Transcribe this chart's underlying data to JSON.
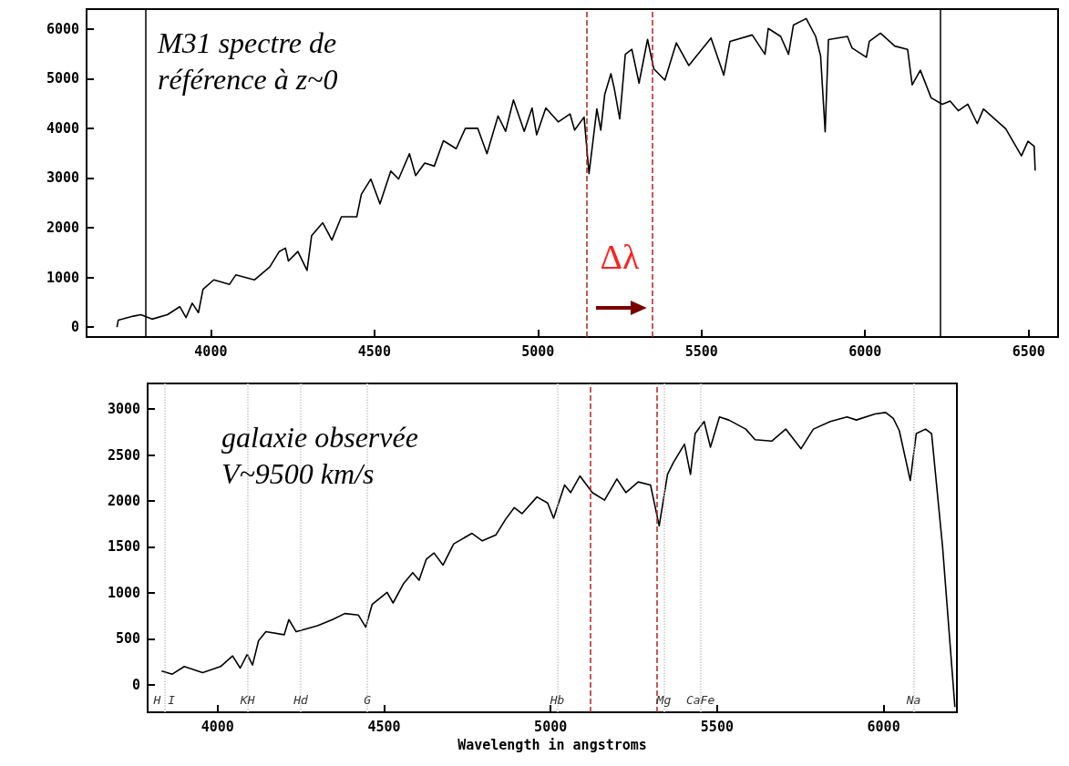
{
  "chart_data": [
    {
      "type": "line",
      "title": "M31 spectre de\nréférence à z~0",
      "marker": "none",
      "grid": false,
      "xlim": [
        3620,
        6590
      ],
      "xticks": [
        4000,
        4500,
        5000,
        5500,
        6000,
        6500
      ],
      "ylim": [
        -200,
        6400
      ],
      "yticks": [
        0,
        1000,
        2000,
        3000,
        4000,
        5000,
        6000
      ],
      "series": [
        {
          "color": "#000000",
          "x": [
            3713,
            3717,
            3763,
            3786,
            3820,
            3867,
            3905,
            3924,
            3943,
            3962,
            3976,
            4009,
            4057,
            4076,
            4133,
            4180,
            4209,
            4228,
            4237,
            4266,
            4294,
            4308,
            4342,
            4370,
            4399,
            4446,
            4460,
            4489,
            4517,
            4550,
            4574,
            4607,
            4626,
            4654,
            4683,
            4711,
            4750,
            4778,
            4816,
            4844,
            4878,
            4901,
            4925,
            4958,
            4982,
            4996,
            5024,
            5062,
            5098,
            5112,
            5141,
            5156,
            5165,
            5180,
            5192,
            5204,
            5223,
            5233,
            5250,
            5267,
            5287,
            5309,
            5335,
            5354,
            5388,
            5423,
            5461,
            5529,
            5568,
            5587,
            5655,
            5694,
            5704,
            5742,
            5766,
            5781,
            5820,
            5849,
            5864,
            5878,
            5888,
            5946,
            5960,
            6004,
            6013,
            6047,
            6091,
            6130,
            6144,
            6169,
            6202,
            6236,
            6260,
            6285,
            6314,
            6343,
            6362,
            6430,
            6478,
            6498,
            6517,
            6520
          ],
          "values": [
            0,
            140,
            220,
            250,
            160,
            250,
            410,
            190,
            480,
            290,
            760,
            950,
            860,
            1050,
            950,
            1210,
            1520,
            1590,
            1330,
            1520,
            1140,
            1840,
            2100,
            1750,
            2220,
            2220,
            2670,
            2980,
            2480,
            3140,
            2980,
            3490,
            3050,
            3300,
            3240,
            3750,
            3590,
            4000,
            4000,
            3490,
            4250,
            3940,
            4570,
            3940,
            4410,
            3870,
            4410,
            4130,
            4290,
            3965,
            4225,
            3090,
            3575,
            4390,
            3965,
            4680,
            5100,
            4810,
            4190,
            5490,
            5590,
            4910,
            5790,
            5200,
            4970,
            5720,
            5265,
            5820,
            5070,
            5750,
            5880,
            5490,
            6010,
            5850,
            5490,
            6080,
            6210,
            5850,
            5460,
            3930,
            5785,
            5850,
            5620,
            5430,
            5750,
            5915,
            5655,
            5590,
            4875,
            5170,
            4615,
            4485,
            4550,
            4355,
            4485,
            4095,
            4390,
            3990,
            3445,
            3740,
            3640,
            3150
          ]
        }
      ],
      "ref_lines": [
        {
          "axis": "x",
          "value": 3800,
          "color": "#000000",
          "line_style": "solid"
        },
        {
          "axis": "x",
          "value": 6230,
          "color": "#000000",
          "line_style": "solid"
        },
        {
          "axis": "x",
          "value": 5150,
          "color": "#b22222",
          "line_style": "dashed"
        },
        {
          "axis": "x",
          "value": 5350,
          "color": "#b22222",
          "line_style": "dashed"
        }
      ],
      "annotations": [
        "Δλ"
      ]
    },
    {
      "type": "line",
      "title": "galaxie observée\nV~9500 km/s",
      "xlabel": "Wavelength in angstroms",
      "marker": "none",
      "grid": false,
      "xlim": [
        3790,
        6220
      ],
      "xticks": [
        4000,
        4500,
        5000,
        5500,
        6000
      ],
      "ylim": [
        -300,
        3280
      ],
      "yticks": [
        0,
        500,
        1000,
        1500,
        2000,
        2500,
        3000
      ],
      "series": [
        {
          "color": "#000000",
          "x": [
            3832,
            3864,
            3900,
            3955,
            4009,
            4045,
            4068,
            4089,
            4105,
            4123,
            4145,
            4200,
            4214,
            4236,
            4300,
            4345,
            4382,
            4423,
            4445,
            4464,
            4509,
            4527,
            4559,
            4586,
            4605,
            4627,
            4650,
            4677,
            4709,
            4764,
            4795,
            4836,
            4864,
            4891,
            4914,
            4959,
            4991,
            5009,
            5042,
            5060,
            5088,
            5125,
            5162,
            5199,
            5226,
            5263,
            5300,
            5326,
            5351,
            5369,
            5402,
            5420,
            5434,
            5461,
            5480,
            5507,
            5535,
            5586,
            5614,
            5664,
            5706,
            5752,
            5789,
            5840,
            5890,
            5918,
            5974,
            6006,
            6029,
            6047,
            6080,
            6098,
            6126,
            6144,
            6177,
            6214
          ],
          "values": [
            148,
            115,
            198,
            132,
            198,
            313,
            181,
            330,
            214,
            478,
            577,
            544,
            709,
            577,
            643,
            709,
            775,
            758,
            626,
            873,
            1005,
            890,
            1104,
            1220,
            1137,
            1368,
            1434,
            1302,
            1533,
            1648,
            1566,
            1632,
            1796,
            1928,
            1862,
            2044,
            1978,
            1813,
            2175,
            2092,
            2273,
            2092,
            2010,
            2240,
            2092,
            2208,
            2175,
            1730,
            2290,
            2421,
            2619,
            2290,
            2734,
            2866,
            2586,
            2915,
            2882,
            2783,
            2668,
            2652,
            2783,
            2569,
            2783,
            2866,
            2915,
            2882,
            2948,
            2964,
            2899,
            2767,
            2224,
            2734,
            2783,
            2734,
            1500,
            -243
          ]
        }
      ],
      "ref_lines": [
        {
          "axis": "x",
          "value": 5120,
          "color": "#b22222",
          "line_style": "dashed"
        },
        {
          "axis": "x",
          "value": 5320,
          "color": "#b22222",
          "line_style": "dashed"
        },
        {
          "axis": "x",
          "value": 3840,
          "label": "H I",
          "color": "#c8c8c8",
          "line_style": "dotted"
        },
        {
          "axis": "x",
          "value": 4090,
          "label": "KH",
          "color": "#c8c8c8",
          "line_style": "dotted"
        },
        {
          "axis": "x",
          "value": 4250,
          "label": "Hd",
          "color": "#c8c8c8",
          "line_style": "dotted"
        },
        {
          "axis": "x",
          "value": 4450,
          "label": "G",
          "color": "#c8c8c8",
          "line_style": "dotted"
        },
        {
          "axis": "x",
          "value": 5020,
          "label": "Hb",
          "color": "#c8c8c8",
          "line_style": "dotted"
        },
        {
          "axis": "x",
          "value": 5340,
          "label": "Mg",
          "color": "#c8c8c8",
          "line_style": "dotted"
        },
        {
          "axis": "x",
          "value": 5450,
          "label": "CaFe",
          "color": "#c8c8c8",
          "line_style": "dotted"
        },
        {
          "axis": "x",
          "value": 6090,
          "label": "Na",
          "color": "#c8c8c8",
          "line_style": "dotted"
        }
      ]
    }
  ]
}
